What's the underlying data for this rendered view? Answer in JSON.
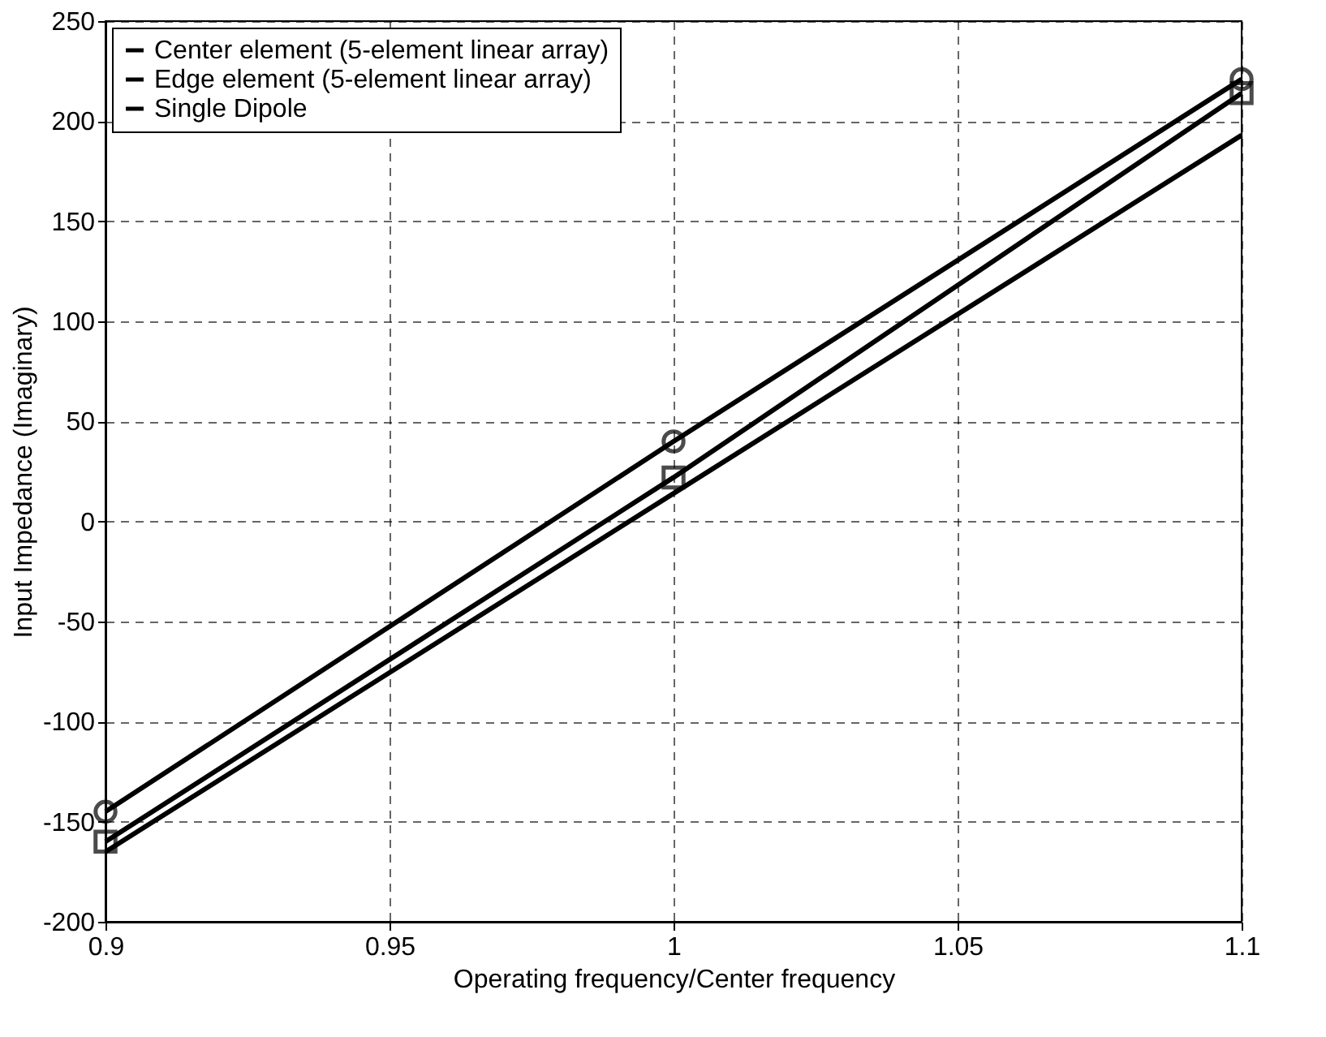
{
  "chart_data": {
    "type": "line",
    "xlabel": "Operating frequency/Center frequency",
    "ylabel": "Input Impedance (Imaginary)",
    "x": [
      0.9,
      1.0,
      1.1
    ],
    "series": [
      {
        "name": "Center element (5-element linear array)",
        "color": "#000000",
        "values": [
          -165,
          14,
          193
        ],
        "marker": "none"
      },
      {
        "name": "Edge element (5-element linear array)",
        "color": "#000000",
        "values": [
          -160,
          22,
          214
        ],
        "marker": "square"
      },
      {
        "name": "Single Dipole",
        "color": "#000000",
        "values": [
          -145,
          40,
          221
        ],
        "marker": "circle"
      }
    ],
    "xlim": [
      0.9,
      1.1
    ],
    "xticks": [
      0.9,
      0.95,
      1,
      1.05,
      1.1
    ],
    "ylim": [
      -200,
      250
    ],
    "yticks": [
      -200,
      -150,
      -100,
      -50,
      0,
      50,
      100,
      150,
      200,
      250
    ],
    "grid": true,
    "legend": "top left",
    "line_style": "solid"
  }
}
